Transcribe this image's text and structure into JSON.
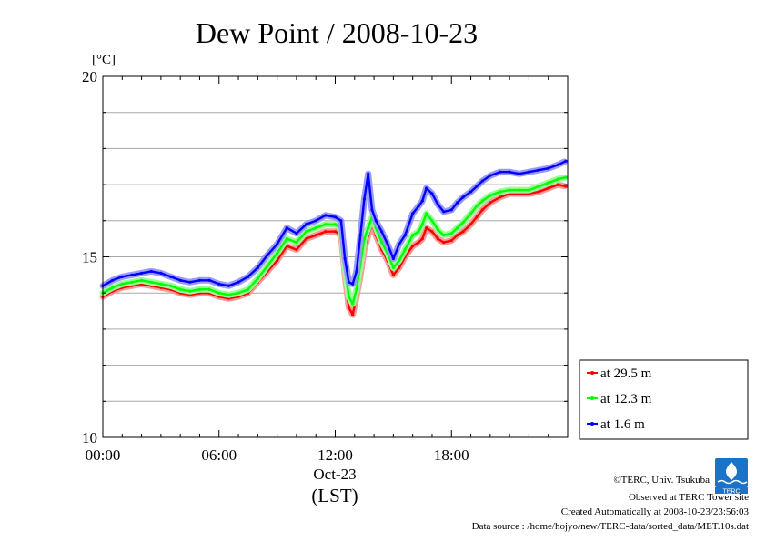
{
  "chart_data": {
    "type": "line",
    "title": "Dew Point / 2008-10-23",
    "ylabel": "[°C]",
    "xlabel": "(LST)",
    "date_label": "Oct-23",
    "ylim": [
      10,
      20
    ],
    "xlim": [
      0,
      24
    ],
    "yticks": [
      "10",
      "15",
      "20"
    ],
    "xticks": [
      {
        "h": 0,
        "label": "00:00"
      },
      {
        "h": 6,
        "label": "06:00"
      },
      {
        "h": 12,
        "label": "12:00"
      },
      {
        "h": 18,
        "label": "18:00"
      }
    ],
    "grid": true,
    "legend_position": "right-bottom",
    "series": [
      {
        "name": "at 29.5 m",
        "color": "#ff0000",
        "x": [
          0,
          0.5,
          1,
          1.5,
          2,
          2.5,
          3,
          3.5,
          4,
          4.5,
          5,
          5.5,
          6,
          6.5,
          7,
          7.5,
          8,
          8.5,
          9,
          9.5,
          10,
          10.5,
          11,
          11.5,
          12,
          12.3,
          12.5,
          12.7,
          12.9,
          13.1,
          13.3,
          13.5,
          13.7,
          13.9,
          14.1,
          14.4,
          14.7,
          15,
          15.3,
          15.6,
          16,
          16.3,
          16.5,
          16.7,
          17,
          17.3,
          17.6,
          18,
          18.3,
          18.6,
          19,
          19.3,
          19.6,
          20,
          20.5,
          21,
          21.5,
          22,
          22.5,
          23,
          23.5,
          23.9
        ],
        "y": [
          13.9,
          14.05,
          14.15,
          14.2,
          14.25,
          14.2,
          14.15,
          14.1,
          14.0,
          13.95,
          14.0,
          14.0,
          13.9,
          13.85,
          13.9,
          14.0,
          14.3,
          14.6,
          14.9,
          15.3,
          15.2,
          15.5,
          15.6,
          15.7,
          15.7,
          15.6,
          14.5,
          13.6,
          13.4,
          13.9,
          14.5,
          15.2,
          15.6,
          15.9,
          15.6,
          15.2,
          14.9,
          14.5,
          14.7,
          15.0,
          15.3,
          15.4,
          15.5,
          15.8,
          15.7,
          15.5,
          15.4,
          15.45,
          15.6,
          15.7,
          15.9,
          16.1,
          16.3,
          16.5,
          16.65,
          16.75,
          16.75,
          16.75,
          16.8,
          16.9,
          17.0,
          16.95
        ]
      },
      {
        "name": "at 12.3 m",
        "color": "#00ff00",
        "x": [
          0,
          0.5,
          1,
          1.5,
          2,
          2.5,
          3,
          3.5,
          4,
          4.5,
          5,
          5.5,
          6,
          6.5,
          7,
          7.5,
          8,
          8.5,
          9,
          9.5,
          10,
          10.5,
          11,
          11.5,
          12,
          12.3,
          12.5,
          12.7,
          12.9,
          13.1,
          13.3,
          13.5,
          13.7,
          13.9,
          14.1,
          14.4,
          14.7,
          15,
          15.3,
          15.6,
          16,
          16.3,
          16.5,
          16.7,
          17,
          17.3,
          17.6,
          18,
          18.3,
          18.6,
          19,
          19.3,
          19.6,
          20,
          20.5,
          21,
          21.5,
          22,
          22.5,
          23,
          23.5,
          23.9
        ],
        "y": [
          14.0,
          14.15,
          14.25,
          14.3,
          14.35,
          14.3,
          14.25,
          14.2,
          14.1,
          14.05,
          14.1,
          14.1,
          14.0,
          13.95,
          14.0,
          14.1,
          14.4,
          14.75,
          15.1,
          15.5,
          15.4,
          15.7,
          15.8,
          15.9,
          15.9,
          15.8,
          14.7,
          13.9,
          13.7,
          14.1,
          14.8,
          15.5,
          15.8,
          16.1,
          15.8,
          15.4,
          15.1,
          14.7,
          14.9,
          15.2,
          15.6,
          15.7,
          15.9,
          16.2,
          16.0,
          15.75,
          15.6,
          15.65,
          15.8,
          15.95,
          16.2,
          16.4,
          16.55,
          16.7,
          16.8,
          16.85,
          16.85,
          16.85,
          16.95,
          17.05,
          17.15,
          17.2
        ]
      },
      {
        "name": "at 1.6 m",
        "color": "#0000ff",
        "x": [
          0,
          0.5,
          1,
          1.5,
          2,
          2.5,
          3,
          3.5,
          4,
          4.5,
          5,
          5.5,
          6,
          6.5,
          7,
          7.5,
          8,
          8.5,
          9,
          9.5,
          10,
          10.5,
          11,
          11.5,
          12,
          12.3,
          12.5,
          12.7,
          12.9,
          13.1,
          13.3,
          13.5,
          13.7,
          13.9,
          14.1,
          14.4,
          14.7,
          15,
          15.3,
          15.6,
          16,
          16.3,
          16.5,
          16.7,
          17,
          17.3,
          17.6,
          18,
          18.3,
          18.6,
          19,
          19.3,
          19.6,
          20,
          20.5,
          21,
          21.5,
          22,
          22.5,
          23,
          23.5,
          23.9
        ],
        "y": [
          14.2,
          14.35,
          14.45,
          14.5,
          14.55,
          14.6,
          14.55,
          14.45,
          14.35,
          14.3,
          14.35,
          14.35,
          14.25,
          14.2,
          14.3,
          14.45,
          14.7,
          15.05,
          15.35,
          15.8,
          15.65,
          15.9,
          16.0,
          16.15,
          16.1,
          16.0,
          14.95,
          14.3,
          14.25,
          14.6,
          15.6,
          16.6,
          17.3,
          16.3,
          16.0,
          15.7,
          15.35,
          14.95,
          15.35,
          15.6,
          16.2,
          16.4,
          16.55,
          16.9,
          16.75,
          16.45,
          16.25,
          16.3,
          16.5,
          16.65,
          16.8,
          16.95,
          17.1,
          17.25,
          17.35,
          17.35,
          17.3,
          17.35,
          17.4,
          17.45,
          17.55,
          17.65
        ]
      }
    ]
  },
  "footer": {
    "copyright": "©TERC, Univ. Tsukuba",
    "observed": "Observed at TERC Tower site",
    "created": "Created Automatically at 2008-10-23/23:56:03",
    "source": "Data source : /home/hojyo/new/TERC-data/sorted_data/MET.10s.dat",
    "logo_text": "TERC"
  }
}
